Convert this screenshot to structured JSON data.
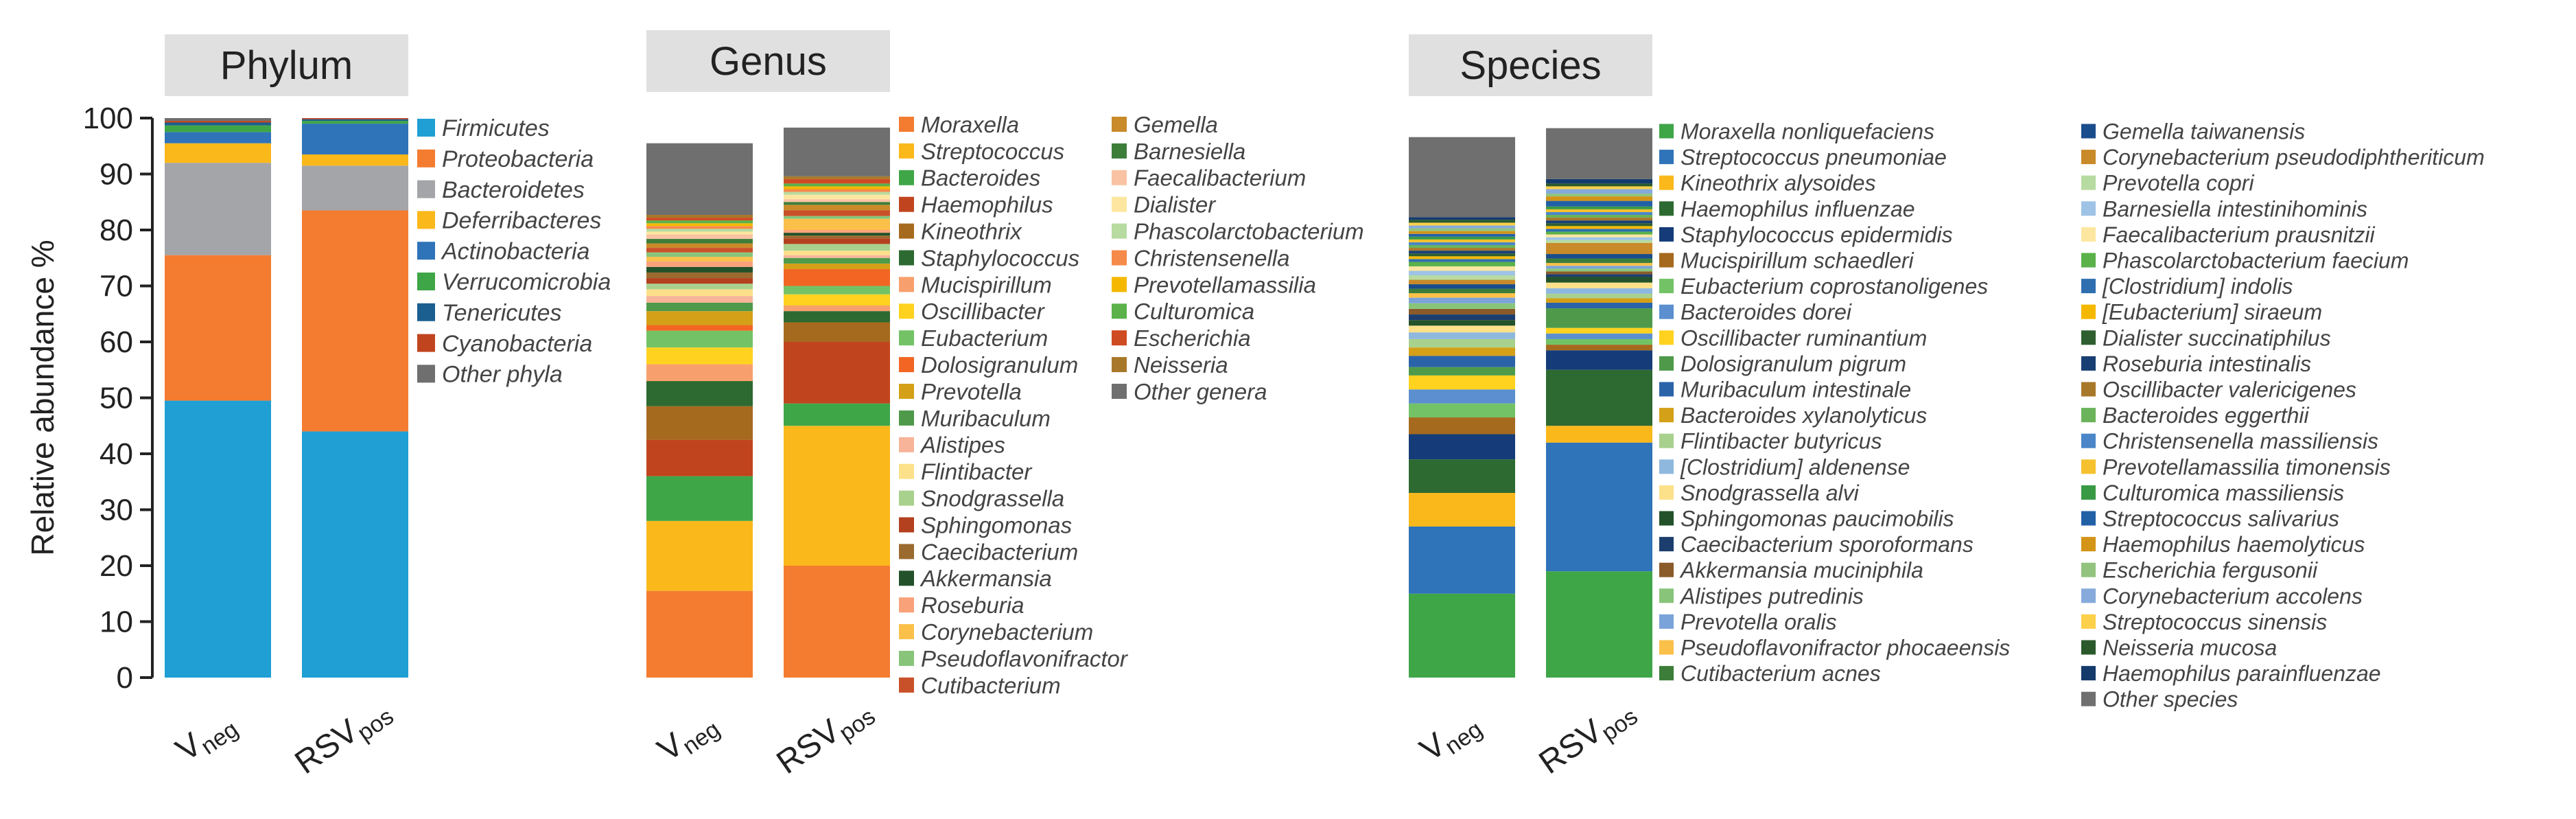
{
  "chart_data": [
    {
      "type": "stacked-bar",
      "title": "Phylum",
      "ylabel": "Relative abundance %",
      "ylim": [
        0,
        100
      ],
      "yticks": [
        "0",
        "10",
        "20",
        "30",
        "40",
        "50",
        "60",
        "70",
        "80",
        "90",
        "100"
      ],
      "categories": [
        "Vneg",
        "RSVpos"
      ],
      "category_labels": [
        {
          "main": "V",
          "sub": "neg"
        },
        {
          "main": "RSV",
          "sub": "pos"
        }
      ],
      "series": [
        {
          "name": "Firmicutes",
          "color": "#1f9fd4",
          "values": [
            49.5,
            44
          ]
        },
        {
          "name": "Proteobacteria",
          "color": "#f47c30",
          "values": [
            26,
            39.5
          ]
        },
        {
          "name": "Bacteroidetes",
          "color": "#a3a5a8",
          "values": [
            16.5,
            8
          ]
        },
        {
          "name": "Deferribacteres",
          "color": "#fbb81b",
          "values": [
            3.5,
            2
          ]
        },
        {
          "name": "Actinobacteria",
          "color": "#2f73b9",
          "values": [
            2,
            5.5
          ]
        },
        {
          "name": "Verrucomicrobia",
          "color": "#3fa648",
          "values": [
            1.2,
            0.5
          ]
        },
        {
          "name": "Tenericutes",
          "color": "#1a5f8f",
          "values": [
            0.5,
            0.3
          ]
        },
        {
          "name": "Cyanobacteria",
          "color": "#c0451e",
          "values": [
            0.3,
            0.2
          ]
        },
        {
          "name": "Other phyla",
          "color": "#6f6f70",
          "values": [
            0.5,
            0
          ]
        }
      ]
    },
    {
      "type": "stacked-bar",
      "title": "Genus",
      "ylim": [
        0,
        100
      ],
      "categories": [
        "Vneg",
        "RSVpos"
      ],
      "category_labels": [
        {
          "main": "V",
          "sub": "neg"
        },
        {
          "main": "RSV",
          "sub": "pos"
        }
      ],
      "legend_columns": [
        [
          "Moraxella",
          "Streptococcus",
          "Bacteroides",
          "Haemophilus",
          "Kineothrix",
          "Staphylococcus",
          "Mucispirillum",
          "Oscillibacter",
          "Eubacterium",
          "Dolosigranulum",
          "Prevotella",
          "Muribaculum",
          "Alistipes",
          "Flintibacter",
          "Snodgrassella",
          "Sphingomonas",
          "Caecibacterium",
          "Akkermansia",
          "Roseburia",
          "Corynebacterium",
          "Pseudoflavonifractor",
          "Cutibacterium"
        ],
        [
          "Gemella",
          "Barnesiella",
          "Faecalibacterium",
          "Dialister",
          "Phascolarctobacterium",
          "Christensenella",
          "Prevotellamassilia",
          "Culturomica",
          "Escherichia",
          "Neisseria",
          "Other genera"
        ]
      ],
      "series": [
        {
          "name": "Moraxella",
          "color": "#f47c30",
          "values": [
            15.5,
            20
          ]
        },
        {
          "name": "Streptococcus",
          "color": "#fbb81b",
          "values": [
            12.5,
            25
          ]
        },
        {
          "name": "Bacteroides",
          "color": "#3fa648",
          "values": [
            8,
            4
          ]
        },
        {
          "name": "Haemophilus",
          "color": "#c0451e",
          "values": [
            6.5,
            11
          ]
        },
        {
          "name": "Kineothrix",
          "color": "#a66a1e",
          "values": [
            6,
            3.5
          ]
        },
        {
          "name": "Staphylococcus",
          "color": "#2d6a31",
          "values": [
            4.5,
            2
          ]
        },
        {
          "name": "Mucispirillum",
          "color": "#f8a06d",
          "values": [
            3,
            1
          ]
        },
        {
          "name": "Oscillibacter",
          "color": "#ffd21f",
          "values": [
            3,
            2
          ]
        },
        {
          "name": "Eubacterium",
          "color": "#73c366",
          "values": [
            3,
            1.5
          ]
        },
        {
          "name": "Dolosigranulum",
          "color": "#f26522",
          "values": [
            1,
            3
          ]
        },
        {
          "name": "Prevotella",
          "color": "#d4a017",
          "values": [
            2.5,
            1
          ]
        },
        {
          "name": "Muribaculum",
          "color": "#4e9a4a",
          "values": [
            1.5,
            1
          ]
        },
        {
          "name": "Alistipes",
          "color": "#f7b499",
          "values": [
            1.2,
            0.5
          ]
        },
        {
          "name": "Flintibacter",
          "color": "#fde08a",
          "values": [
            1.2,
            0.8
          ]
        },
        {
          "name": "Snodgrassella",
          "color": "#a9d18e",
          "values": [
            1,
            1.2
          ]
        },
        {
          "name": "Sphingomonas",
          "color": "#b3401e",
          "values": [
            1,
            1
          ]
        },
        {
          "name": "Caecibacterium",
          "color": "#9b6a2e",
          "values": [
            1,
            0.5
          ]
        },
        {
          "name": "Akkermansia",
          "color": "#23522a",
          "values": [
            1,
            0.5
          ]
        },
        {
          "name": "Roseburia",
          "color": "#f9a27a",
          "values": [
            1,
            0.5
          ]
        },
        {
          "name": "Corynebacterium",
          "color": "#fbc04a",
          "values": [
            0.8,
            2
          ]
        },
        {
          "name": "Pseudoflavonifractor",
          "color": "#88c57a",
          "values": [
            0.8,
            0.5
          ]
        },
        {
          "name": "Cutibacterium",
          "color": "#c9512a",
          "values": [
            0.8,
            1
          ]
        },
        {
          "name": "Gemella",
          "color": "#c98a2a",
          "values": [
            0.8,
            1
          ]
        },
        {
          "name": "Barnesiella",
          "color": "#3c7d3a",
          "values": [
            0.8,
            0.5
          ]
        },
        {
          "name": "Faecalibacterium",
          "color": "#f9c3a3",
          "values": [
            0.8,
            0.5
          ]
        },
        {
          "name": "Dialister",
          "color": "#fde7a0",
          "values": [
            0.5,
            0.8
          ]
        },
        {
          "name": "Phascolarctobacterium",
          "color": "#b7dba0",
          "values": [
            0.5,
            0.5
          ]
        },
        {
          "name": "Christensenella",
          "color": "#f58a4a",
          "values": [
            0.5,
            0.5
          ]
        },
        {
          "name": "Prevotellamassilia",
          "color": "#f5b800",
          "values": [
            0.5,
            0.5
          ]
        },
        {
          "name": "Culturomica",
          "color": "#5bb14a",
          "values": [
            0.5,
            0.5
          ]
        },
        {
          "name": "Escherichia",
          "color": "#cf4b22",
          "values": [
            0.5,
            0.8
          ]
        },
        {
          "name": "Neisseria",
          "color": "#a8782a",
          "values": [
            0.5,
            0.5
          ]
        },
        {
          "name": "Other genera",
          "color": "#6f6f70",
          "values": [
            12.8,
            8.7
          ]
        }
      ]
    },
    {
      "type": "stacked-bar",
      "title": "Species",
      "ylim": [
        0,
        100
      ],
      "categories": [
        "Vneg",
        "RSVpos"
      ],
      "category_labels": [
        {
          "main": "V",
          "sub": "neg"
        },
        {
          "main": "RSV",
          "sub": "pos"
        }
      ],
      "legend_columns": [
        [
          "Moraxella nonliquefaciens",
          "Streptococcus pneumoniae",
          "Kineothrix alysoides",
          "Haemophilus influenzae",
          "Staphylococcus epidermidis",
          "Mucispirillum schaedleri",
          "Eubacterium coprostanoligenes",
          "Bacteroides dorei",
          "Oscillibacter ruminantium",
          "Dolosigranulum pigrum",
          "Muribaculum intestinale",
          "Bacteroides xylanolyticus",
          "Flintibacter butyricus",
          "[Clostridium] aldenense",
          "Snodgrassella alvi",
          "Sphingomonas paucimobilis",
          "Caecibacterium sporoformans",
          "Akkermansia muciniphila",
          "Alistipes putredinis",
          "Prevotella oralis",
          "Pseudoflavonifractor phocaeensis",
          "Cutibacterium acnes"
        ],
        [
          "Gemella taiwanensis",
          "Corynebacterium pseudodiphtheriticum",
          "Prevotella copri",
          "Barnesiella intestinihominis",
          "Faecalibacterium prausnitzii",
          "Phascolarctobacterium faecium",
          "[Clostridium] indolis",
          "[Eubacterium] siraeum",
          "Dialister succinatiphilus",
          "Roseburia intestinalis",
          "Oscillibacter valericigenes",
          "Bacteroides eggerthii",
          "Christensenella massiliensis",
          "Prevotellamassilia timonensis",
          "Culturomica massiliensis",
          "Streptococcus salivarius",
          "Haemophilus haemolyticus",
          "Escherichia fergusonii",
          "Corynebacterium accolens",
          "Streptococcus sinensis",
          "Neisseria mucosa",
          "Haemophilus parainfluenzae",
          "Other species"
        ]
      ],
      "series": [
        {
          "name": "Moraxella nonliquefaciens",
          "color": "#3fa648",
          "values": [
            15,
            19
          ]
        },
        {
          "name": "Streptococcus pneumoniae",
          "color": "#2f73b9",
          "values": [
            12,
            23
          ]
        },
        {
          "name": "Kineothrix alysoides",
          "color": "#fbb81b",
          "values": [
            6,
            3
          ]
        },
        {
          "name": "Haemophilus influenzae",
          "color": "#2d6a31",
          "values": [
            6,
            10
          ]
        },
        {
          "name": "Staphylococcus epidermidis",
          "color": "#153c78",
          "values": [
            4.5,
            3.5
          ]
        },
        {
          "name": "Mucispirillum schaedleri",
          "color": "#a66a1e",
          "values": [
            3,
            1
          ]
        },
        {
          "name": "Eubacterium coprostanoligenes",
          "color": "#73c366",
          "values": [
            2.5,
            1
          ]
        },
        {
          "name": "Bacteroides dorei",
          "color": "#5b8fcf",
          "values": [
            2.5,
            1
          ]
        },
        {
          "name": "Oscillibacter ruminantium",
          "color": "#ffd21f",
          "values": [
            2.5,
            1
          ]
        },
        {
          "name": "Dolosigranulum pigrum",
          "color": "#4e9a4a",
          "values": [
            1.5,
            3.5
          ]
        },
        {
          "name": "Muribaculum intestinale",
          "color": "#2a63a8",
          "values": [
            2,
            1
          ]
        },
        {
          "name": "Bacteroides xylanolyticus",
          "color": "#d4a017",
          "values": [
            1.5,
            0.8
          ]
        },
        {
          "name": "Flintibacter butyricus",
          "color": "#a9d18e",
          "values": [
            1.5,
            0.8
          ]
        },
        {
          "name": "[Clostridium] aldenense",
          "color": "#8fb8de",
          "values": [
            1.2,
            1
          ]
        },
        {
          "name": "Snodgrassella alvi",
          "color": "#fde08a",
          "values": [
            1.2,
            1
          ]
        },
        {
          "name": "Sphingomonas paucimobilis",
          "color": "#23522a",
          "values": [
            1,
            1
          ]
        },
        {
          "name": "Caecibacterium sporoformans",
          "color": "#1c3e6e",
          "values": [
            1,
            0.5
          ]
        },
        {
          "name": "Akkermansia muciniphila",
          "color": "#8a5a2a",
          "values": [
            1,
            0.5
          ]
        },
        {
          "name": "Alistipes putredinis",
          "color": "#88c57a",
          "values": [
            1,
            0.5
          ]
        },
        {
          "name": "Prevotella oralis",
          "color": "#7aa3d9",
          "values": [
            1,
            0.5
          ]
        },
        {
          "name": "Pseudoflavonifractor phocaeensis",
          "color": "#fbc04a",
          "values": [
            0.8,
            0.5
          ]
        },
        {
          "name": "Cutibacterium acnes",
          "color": "#3c7d3a",
          "values": [
            0.8,
            0.8
          ]
        },
        {
          "name": "Gemella taiwanensis",
          "color": "#1a4d8c",
          "values": [
            0.8,
            0.8
          ]
        },
        {
          "name": "Corynebacterium pseudodiphtheriticum",
          "color": "#c98a2a",
          "values": [
            0.8,
            2
          ]
        },
        {
          "name": "Prevotella copri",
          "color": "#b7dba0",
          "values": [
            0.8,
            0.5
          ]
        },
        {
          "name": "Barnesiella intestinihominis",
          "color": "#9ec3e6",
          "values": [
            0.8,
            0.5
          ]
        },
        {
          "name": "Faecalibacterium prausnitzii",
          "color": "#fde7a0",
          "values": [
            0.8,
            0.5
          ]
        },
        {
          "name": "Phascolarctobacterium faecium",
          "color": "#5bb14a",
          "values": [
            0.8,
            0.5
          ]
        },
        {
          "name": "[Clostridium] indolis",
          "color": "#2f6fb0",
          "values": [
            0.5,
            0.5
          ]
        },
        {
          "name": "[Eubacterium] siraeum",
          "color": "#f5b800",
          "values": [
            0.5,
            0.5
          ]
        },
        {
          "name": "Dialister succinatiphilus",
          "color": "#2f5e2f",
          "values": [
            0.5,
            0.5
          ]
        },
        {
          "name": "Roseburia intestinalis",
          "color": "#183f73",
          "values": [
            0.5,
            0.5
          ]
        },
        {
          "name": "Oscillibacter valericigenes",
          "color": "#a8782a",
          "values": [
            0.5,
            0.5
          ]
        },
        {
          "name": "Bacteroides eggerthii",
          "color": "#6bb35a",
          "values": [
            0.5,
            0.5
          ]
        },
        {
          "name": "Christensenella massiliensis",
          "color": "#4a86c8",
          "values": [
            0.5,
            0.5
          ]
        },
        {
          "name": "Prevotellamassilia timonensis",
          "color": "#f6c12e",
          "values": [
            0.5,
            0.5
          ]
        },
        {
          "name": "Culturomica massiliensis",
          "color": "#399a45",
          "values": [
            0.5,
            0.5
          ]
        },
        {
          "name": "Streptococcus salivarius",
          "color": "#2260a6",
          "values": [
            0.5,
            1
          ]
        },
        {
          "name": "Haemophilus haemolyticus",
          "color": "#d39418",
          "values": [
            0.5,
            0.8
          ]
        },
        {
          "name": "Escherichia fergusonii",
          "color": "#92c47f",
          "values": [
            0.5,
            0.5
          ]
        },
        {
          "name": "Corynebacterium accolens",
          "color": "#86aadb",
          "values": [
            0.5,
            0.8
          ]
        },
        {
          "name": "Streptococcus sinensis",
          "color": "#fcd04a",
          "values": [
            0.5,
            0.5
          ]
        },
        {
          "name": "Neisseria mucosa",
          "color": "#2a5a2c",
          "values": [
            0.5,
            0.5
          ]
        },
        {
          "name": "Haemophilus parainfluenzae",
          "color": "#143a6b",
          "values": [
            0.5,
            0.8
          ]
        },
        {
          "name": "Other species",
          "color": "#6f6f70",
          "values": [
            14.3,
            9.1
          ]
        }
      ]
    }
  ]
}
